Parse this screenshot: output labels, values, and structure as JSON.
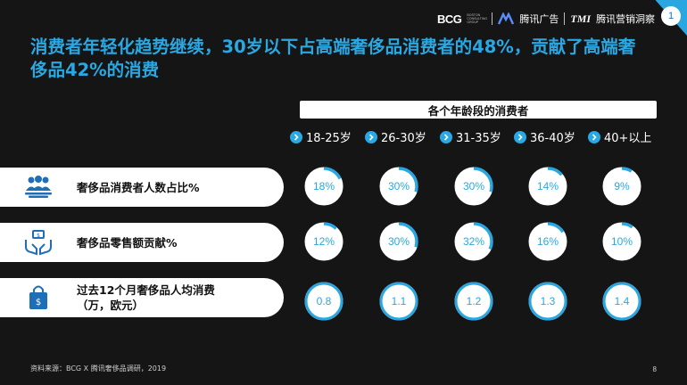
{
  "header": {
    "bcg": "BCG",
    "bcg_sub": "BOSTON CONSULTING GROUP",
    "tencent_ads": "腾讯广告",
    "tmi": "TMI",
    "tmi_cn": "腾讯营销洞察",
    "page_badge": "1"
  },
  "title": "消费者年轻化趋势继续，30岁以下占高端奢侈品消费者的48%，贡献了高端奢侈品42%的消费",
  "chart_data": {
    "type": "table",
    "title": "各个年龄段的消费者",
    "categories": [
      "18-25岁",
      "26-30岁",
      "31-35岁",
      "36-40岁",
      "40+以上"
    ],
    "rows": [
      {
        "label": "奢侈品消费者人数占比%",
        "icon": "people-group-icon",
        "values": [
          18,
          30,
          30,
          14,
          9
        ],
        "display": [
          "18%",
          "30%",
          "30%",
          "14%",
          "9%"
        ],
        "ring": "partial-arc"
      },
      {
        "label": "奢侈品零售额贡献%",
        "icon": "money-hands-icon",
        "values": [
          12,
          30,
          32,
          16,
          10
        ],
        "display": [
          "12%",
          "30%",
          "32%",
          "16%",
          "10%"
        ],
        "ring": "partial-arc"
      },
      {
        "label": "过去12个月奢侈品人均消费（万，欧元）",
        "label_lines": [
          "过去12个月奢侈品人均消费",
          "（万，欧元）"
        ],
        "icon": "shopping-bag-icon",
        "values": [
          0.8,
          1.1,
          1.2,
          1.3,
          1.4
        ],
        "display": [
          "0.8",
          "1.1",
          "1.2",
          "1.3",
          "1.4"
        ],
        "ring": "full"
      }
    ],
    "colors": {
      "accent": "#2aa7e0",
      "ring_track": "#ffffff",
      "background": "#151515"
    }
  },
  "footer": {
    "source": "资料来源：BCG X 腾讯奢侈品调研，2019",
    "page_number": "8"
  }
}
